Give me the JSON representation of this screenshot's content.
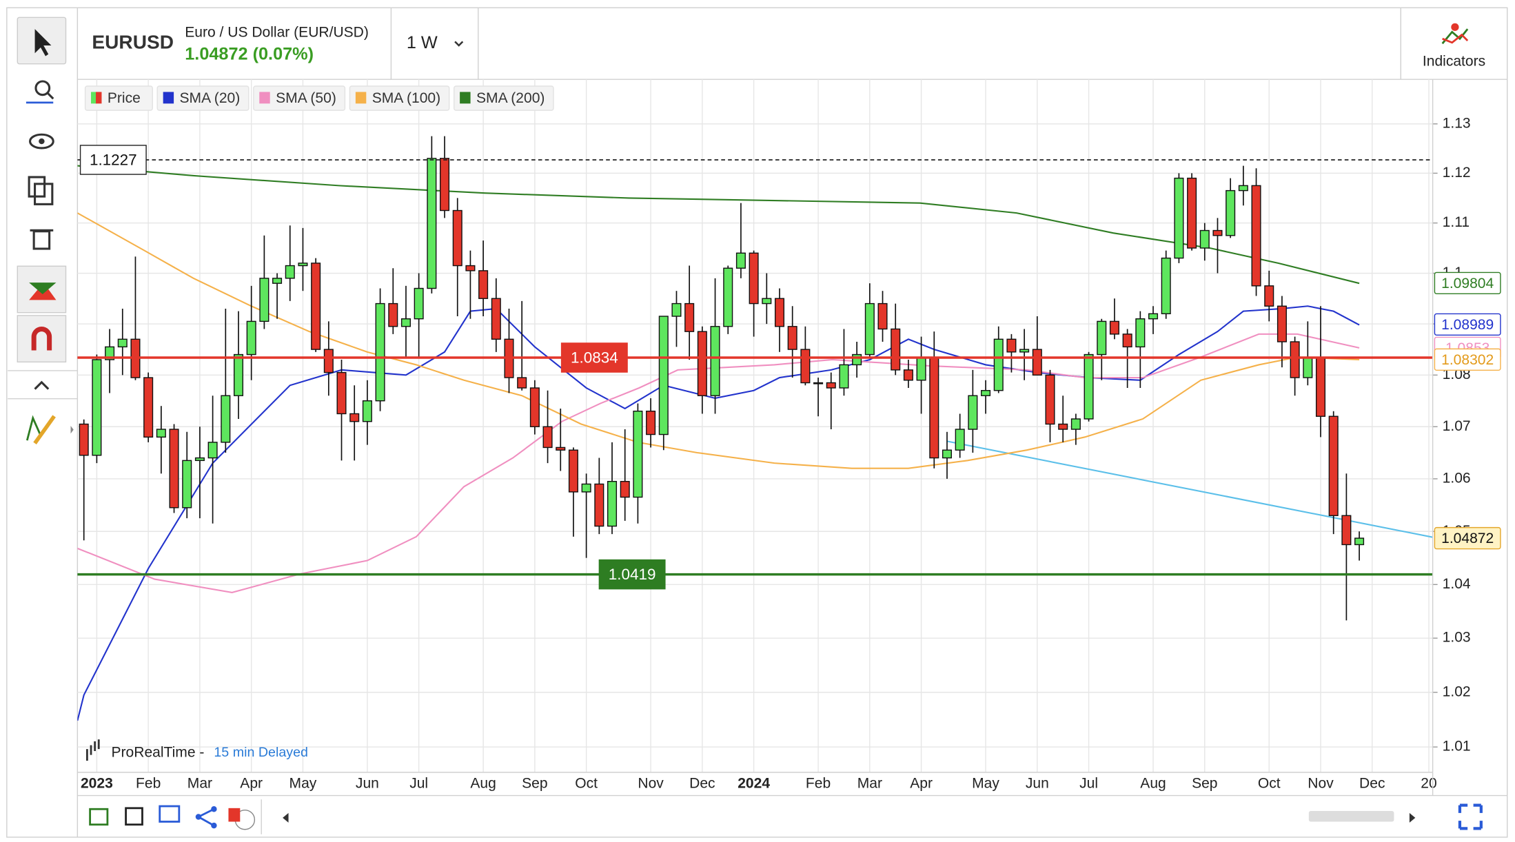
{
  "ui": {
    "symbol": "EURUSD",
    "name": "Euro / US Dollar (EUR/USD)",
    "quote": "1.04872 (0.07%)",
    "timeframe": "1 W",
    "indicators": "Indicators",
    "source": "ProRealTime -",
    "delay": "15 min Delayed"
  },
  "chart_data": {
    "type": "candlestick",
    "log_scale": true,
    "grid": true,
    "ylim": [
      1.0054,
      1.1391
    ],
    "yticks": [
      1.01,
      1.02,
      1.03,
      1.04,
      1.05,
      1.06,
      1.07,
      1.08,
      1.09,
      1.1,
      1.11,
      1.12,
      1.13
    ],
    "xlim": [
      -0.5,
      104.7
    ],
    "xticks": [
      {
        "value": 1,
        "label": "2023"
      },
      {
        "value": 5,
        "label": "Feb"
      },
      {
        "value": 9,
        "label": "Mar"
      },
      {
        "value": 13,
        "label": "Apr"
      },
      {
        "value": 17,
        "label": "May"
      },
      {
        "value": 22,
        "label": "Jun"
      },
      {
        "value": 26,
        "label": "Jul"
      },
      {
        "value": 31,
        "label": "Aug"
      },
      {
        "value": 35,
        "label": "Sep"
      },
      {
        "value": 39,
        "label": "Oct"
      },
      {
        "value": 44,
        "label": "Nov"
      },
      {
        "value": 48,
        "label": "Dec"
      },
      {
        "value": 52,
        "label": "2024"
      },
      {
        "value": 57,
        "label": "Feb"
      },
      {
        "value": 61,
        "label": "Mar"
      },
      {
        "value": 65,
        "label": "Apr"
      },
      {
        "value": 70,
        "label": "May"
      },
      {
        "value": 74,
        "label": "Jun"
      },
      {
        "value": 78,
        "label": "Jul"
      },
      {
        "value": 83,
        "label": "Aug"
      },
      {
        "value": 87,
        "label": "Sep"
      },
      {
        "value": 92,
        "label": "Oct"
      },
      {
        "value": 96,
        "label": "Nov"
      },
      {
        "value": 100,
        "label": "Dec"
      },
      {
        "value": 104.4,
        "label": "20"
      }
    ],
    "series": [
      {
        "name": "Price",
        "up_color": "#5ee65e",
        "down_color": "#e3362a",
        "last": 1.04872,
        "values": [
          [
            1.0705,
            1.0714,
            1.0483,
            1.0645
          ],
          [
            1.0645,
            1.084,
            1.063,
            1.083
          ],
          [
            1.083,
            1.089,
            1.0765,
            1.0855
          ],
          [
            1.0855,
            1.093,
            1.08,
            1.087
          ],
          [
            1.087,
            1.1033,
            1.079,
            1.0795
          ],
          [
            1.0795,
            1.0805,
            1.067,
            1.068
          ],
          [
            1.068,
            1.074,
            1.061,
            1.0695
          ],
          [
            1.0695,
            1.0705,
            1.0535,
            1.0545
          ],
          [
            1.0545,
            1.069,
            1.0525,
            1.0635
          ],
          [
            1.0635,
            1.07,
            1.0525,
            1.064
          ],
          [
            1.064,
            1.076,
            1.0515,
            1.067
          ],
          [
            1.067,
            1.093,
            1.065,
            1.076
          ],
          [
            1.076,
            1.0925,
            1.0715,
            1.084
          ],
          [
            1.084,
            1.0975,
            1.079,
            1.0905
          ],
          [
            1.0905,
            1.1075,
            1.089,
            1.099
          ],
          [
            1.098,
            1.1,
            1.091,
            1.099
          ],
          [
            1.099,
            1.1095,
            1.0945,
            1.1015
          ],
          [
            1.1015,
            1.109,
            1.0965,
            1.102
          ],
          [
            1.102,
            1.103,
            1.0845,
            1.085
          ],
          [
            1.085,
            1.0905,
            1.076,
            1.0805
          ],
          [
            1.0805,
            1.083,
            1.0635,
            1.0725
          ],
          [
            1.0725,
            1.078,
            1.0635,
            1.071
          ],
          [
            1.071,
            1.079,
            1.0665,
            1.075
          ],
          [
            1.075,
            1.097,
            1.073,
            1.094
          ],
          [
            1.094,
            1.101,
            1.088,
            1.0895
          ],
          [
            1.0895,
            1.0975,
            1.0835,
            1.091
          ],
          [
            1.091,
            1.1,
            1.0835,
            1.097
          ],
          [
            1.097,
            1.1275,
            1.096,
            1.123
          ],
          [
            1.123,
            1.1275,
            1.111,
            1.1125
          ],
          [
            1.1125,
            1.115,
            1.0915,
            1.1015
          ],
          [
            1.1015,
            1.1045,
            1.091,
            1.1005
          ],
          [
            1.1005,
            1.1065,
            1.0915,
            1.095
          ],
          [
            1.095,
            1.099,
            1.0845,
            1.087
          ],
          [
            1.087,
            1.093,
            1.0765,
            1.0795
          ],
          [
            1.0795,
            1.0945,
            1.077,
            1.0775
          ],
          [
            1.0775,
            1.079,
            1.0685,
            1.07
          ],
          [
            1.07,
            1.077,
            1.063,
            1.066
          ],
          [
            1.066,
            1.0735,
            1.0615,
            1.0655
          ],
          [
            1.0655,
            1.066,
            1.049,
            1.0575
          ],
          [
            1.0575,
            1.061,
            1.045,
            1.059
          ],
          [
            1.059,
            1.064,
            1.0495,
            1.051
          ],
          [
            1.051,
            1.067,
            1.0495,
            1.0595
          ],
          [
            1.0595,
            1.0695,
            1.052,
            1.0565
          ],
          [
            1.0565,
            1.0745,
            1.0515,
            1.073
          ],
          [
            1.073,
            1.0755,
            1.066,
            1.0685
          ],
          [
            1.0685,
            1.0915,
            1.0655,
            1.0915
          ],
          [
            1.0915,
            1.0965,
            1.0855,
            1.094
          ],
          [
            1.094,
            1.1015,
            1.083,
            1.0885
          ],
          [
            1.0885,
            1.0895,
            1.0725,
            1.076
          ],
          [
            1.076,
            1.099,
            1.0725,
            1.0895
          ],
          [
            1.0895,
            1.1015,
            1.088,
            1.101
          ],
          [
            1.101,
            1.114,
            1.099,
            1.104
          ],
          [
            1.104,
            1.1045,
            1.0875,
            1.094
          ],
          [
            1.094,
            1.1,
            1.09,
            1.095
          ],
          [
            1.095,
            1.097,
            1.0845,
            1.0895
          ],
          [
            1.0895,
            1.0935,
            1.0795,
            1.085
          ],
          [
            1.085,
            1.0895,
            1.078,
            1.0785
          ],
          [
            1.0785,
            1.0795,
            1.072,
            1.0785
          ],
          [
            1.0785,
            1.0805,
            1.0695,
            1.0775
          ],
          [
            1.0775,
            1.089,
            1.076,
            1.082
          ],
          [
            1.082,
            1.0865,
            1.0795,
            1.084
          ],
          [
            1.084,
            1.098,
            1.0835,
            1.094
          ],
          [
            1.094,
            1.0965,
            1.0865,
            1.089
          ],
          [
            1.089,
            1.094,
            1.08,
            1.081
          ],
          [
            1.081,
            1.083,
            1.0775,
            1.079
          ],
          [
            1.079,
            1.0875,
            1.0725,
            1.0835
          ],
          [
            1.0835,
            1.0885,
            1.062,
            1.064
          ],
          [
            1.064,
            1.069,
            1.06,
            1.0655
          ],
          [
            1.0655,
            1.0725,
            1.064,
            1.0695
          ],
          [
            1.0695,
            1.081,
            1.065,
            1.076
          ],
          [
            1.076,
            1.079,
            1.0725,
            1.077
          ],
          [
            1.077,
            1.0895,
            1.0765,
            1.087
          ],
          [
            1.087,
            1.088,
            1.0805,
            1.0845
          ],
          [
            1.0845,
            1.089,
            1.079,
            1.085
          ],
          [
            1.085,
            1.0915,
            1.08,
            1.08
          ],
          [
            1.08,
            1.081,
            1.067,
            1.0705
          ],
          [
            1.0705,
            1.076,
            1.067,
            1.0695
          ],
          [
            1.0695,
            1.0725,
            1.0665,
            1.0715
          ],
          [
            1.0715,
            1.0845,
            1.071,
            1.084
          ],
          [
            1.084,
            1.091,
            1.079,
            1.0905
          ],
          [
            1.0905,
            1.095,
            1.087,
            1.088
          ],
          [
            1.088,
            1.089,
            1.0775,
            1.0855
          ],
          [
            1.0855,
            1.0925,
            1.0775,
            1.091
          ],
          [
            1.091,
            1.0935,
            1.088,
            1.092
          ],
          [
            1.092,
            1.1045,
            1.091,
            1.103
          ],
          [
            1.103,
            1.12,
            1.102,
            1.119
          ],
          [
            1.119,
            1.12,
            1.1045,
            1.105
          ],
          [
            1.105,
            1.11,
            1.1025,
            1.1085
          ],
          [
            1.1085,
            1.111,
            1.1,
            1.1075
          ],
          [
            1.1075,
            1.119,
            1.107,
            1.1165
          ],
          [
            1.1165,
            1.1215,
            1.1135,
            1.1175
          ],
          [
            1.1175,
            1.121,
            1.0955,
            1.0975
          ],
          [
            1.0975,
            1.1005,
            1.0905,
            1.0935
          ],
          [
            1.0935,
            1.0955,
            1.0815,
            1.0865
          ],
          [
            1.0865,
            1.0875,
            1.076,
            1.0795
          ],
          [
            1.0795,
            1.0905,
            1.078,
            1.0835
          ],
          [
            1.0835,
            1.0935,
            1.068,
            1.072
          ],
          [
            1.072,
            1.073,
            1.0495,
            1.053
          ],
          [
            1.053,
            1.061,
            1.0333,
            1.0475
          ],
          [
            1.0475,
            1.05,
            1.0445,
            1.04872
          ]
        ]
      },
      {
        "name": "SMA (20)",
        "color": "#2233cc",
        "last": 1.08989,
        "x": [
          -0.5,
          0,
          5,
          10,
          16,
          20,
          25,
          28,
          30,
          32,
          35,
          39,
          42,
          45,
          49,
          52,
          54,
          58,
          61,
          64,
          66,
          70,
          74,
          78,
          82,
          85,
          88,
          90,
          93,
          95,
          97,
          99
        ],
        "values": [
          1.0148,
          1.0195,
          1.043,
          1.063,
          1.078,
          1.081,
          1.08,
          1.0845,
          1.0925,
          1.093,
          1.0855,
          1.0775,
          1.0735,
          1.078,
          1.0755,
          1.077,
          1.0795,
          1.081,
          1.083,
          1.087,
          1.085,
          1.082,
          1.0805,
          1.0795,
          1.079,
          1.084,
          1.0885,
          1.0925,
          1.093,
          1.0935,
          1.0925,
          1.0898
        ]
      },
      {
        "name": "SMA (50)",
        "color": "#f08fc0",
        "last": 1.0853,
        "x": [
          -0.5,
          5.5,
          11.5,
          16.8,
          22,
          25.8,
          29.5,
          33.3,
          37.1,
          40.1,
          43.1,
          46.1,
          53.6,
          58.1,
          65.6,
          73.2,
          77.7,
          82.2,
          86.7,
          91.2,
          94.2,
          99
        ],
        "values": [
          1.0468,
          1.041,
          1.0385,
          1.042,
          1.0445,
          1.049,
          1.0585,
          1.064,
          1.071,
          1.0745,
          1.0775,
          1.081,
          1.082,
          1.083,
          1.0818,
          1.081,
          1.0795,
          1.0795,
          1.0835,
          1.088,
          1.088,
          1.0853
        ]
      },
      {
        "name": "SMA (100)",
        "color": "#f5b14a",
        "last": 1.08302,
        "x": [
          -0.5,
          4.7,
          8.5,
          13,
          17.5,
          22,
          25.8,
          29.5,
          34,
          38.6,
          43,
          47.6,
          53.6,
          59.6,
          64,
          68.6,
          73.2,
          77.7,
          82.2,
          86.7,
          91.2,
          94.2,
          99
        ],
        "values": [
          1.112,
          1.1045,
          1.099,
          1.0935,
          1.0885,
          1.0845,
          1.082,
          1.079,
          1.076,
          1.0705,
          1.067,
          1.065,
          1.063,
          1.062,
          1.062,
          1.0635,
          1.0655,
          1.068,
          1.0715,
          1.079,
          1.082,
          1.0835,
          1.083
        ]
      },
      {
        "name": "SMA (200)",
        "color": "#2f7d23",
        "last": 1.09804,
        "x": [
          -0.5,
          8.5,
          19.8,
          31.1,
          42.3,
          53.6,
          64.9,
          72.4,
          79.9,
          87.4,
          92.7,
          99
        ],
        "values": [
          1.1215,
          1.1195,
          1.1175,
          1.116,
          1.115,
          1.1145,
          1.114,
          1.112,
          1.108,
          1.105,
          1.102,
          1.098
        ]
      }
    ],
    "levels": [
      {
        "value": 1.1227,
        "color": "#222222",
        "style": "dashed"
      },
      {
        "value": 1.0834,
        "color": "#e3362a",
        "style": "solid"
      },
      {
        "value": 1.0419,
        "color": "#2e7d22",
        "style": "solid"
      }
    ],
    "trendline": {
      "color": "#5bbfe9",
      "x": [
        67,
        104.7
      ],
      "values": [
        1.0672,
        1.0489
      ]
    }
  }
}
